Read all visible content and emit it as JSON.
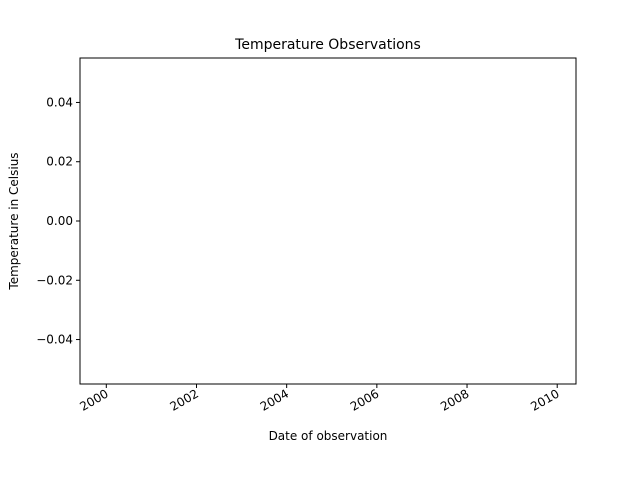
{
  "chart_data": {
    "type": "line",
    "title": "Temperature Observations",
    "xlabel": "Date of observation",
    "ylabel": "Temperature in Celsius",
    "x_ticks": [
      "2000",
      "2002",
      "2004",
      "2006",
      "2008",
      "2010"
    ],
    "y_ticks": [
      "0.04",
      "0.02",
      "0.00",
      "−0.02",
      "−0.04"
    ],
    "y_tick_values": [
      0.04,
      0.02,
      0.0,
      -0.02,
      -0.04
    ],
    "xlim": [
      "1999-06",
      "2010-06"
    ],
    "ylim": [
      -0.055,
      0.055
    ],
    "grid": false,
    "series": []
  }
}
